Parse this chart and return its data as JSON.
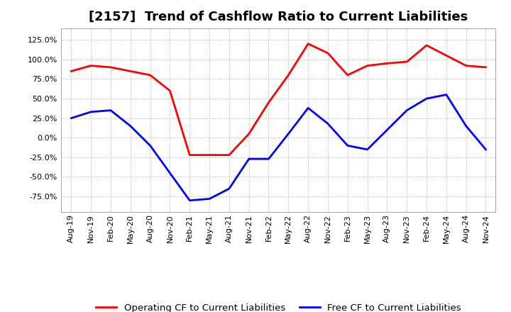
{
  "title": "[2157]  Trend of Cashflow Ratio to Current Liabilities",
  "x_labels": [
    "Aug-19",
    "Nov-19",
    "Feb-20",
    "May-20",
    "Aug-20",
    "Nov-20",
    "Feb-21",
    "May-21",
    "Aug-21",
    "Nov-21",
    "Feb-22",
    "May-22",
    "Aug-22",
    "Nov-22",
    "Feb-23",
    "May-23",
    "Aug-23",
    "Nov-23",
    "Feb-24",
    "May-24",
    "Aug-24",
    "Nov-24"
  ],
  "operating_cf": [
    85,
    92,
    90,
    85,
    80,
    60,
    -22,
    -22,
    -22,
    5,
    45,
    80,
    120,
    108,
    80,
    92,
    95,
    97,
    118,
    105,
    92,
    90
  ],
  "free_cf": [
    25,
    33,
    35,
    15,
    -10,
    -45,
    -80,
    -78,
    -65,
    -27,
    -27,
    5,
    38,
    18,
    -10,
    -15,
    10,
    35,
    50,
    55,
    15,
    -15
  ],
  "operating_color": "#FF0000",
  "free_color": "#0000FF",
  "ylim": [
    -95,
    140
  ],
  "yticks": [
    -75,
    -50,
    -25,
    0,
    25,
    50,
    75,
    100,
    125
  ],
  "background_color": "#FFFFFF",
  "plot_bg_color": "#FFFFFF",
  "grid_color": "#AAAAAA",
  "title_fontsize": 13,
  "legend_fontsize": 9.5,
  "tick_fontsize": 8,
  "linewidth": 2.0
}
